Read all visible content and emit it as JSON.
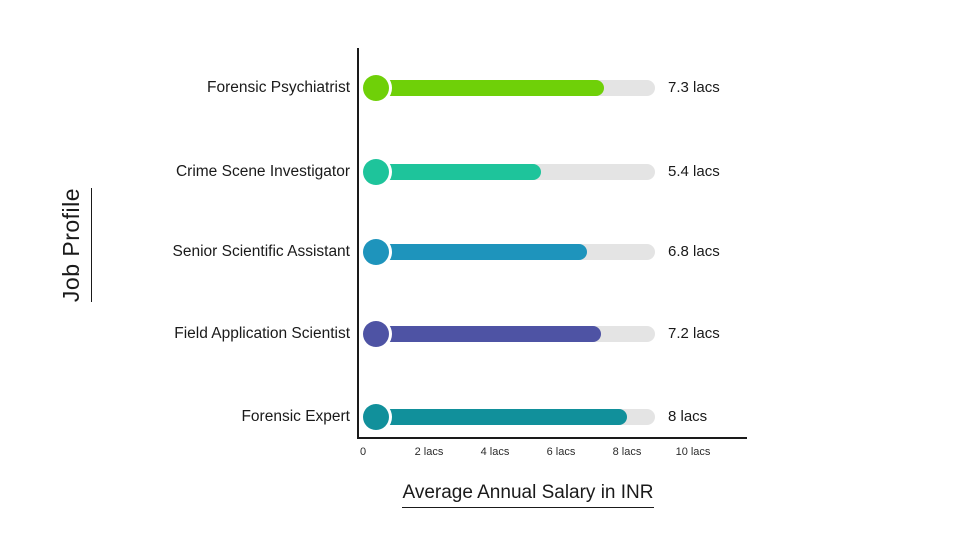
{
  "chart_data": {
    "type": "bar",
    "orientation": "horizontal",
    "title": "",
    "xlabel": "Average Annual Salary in INR",
    "ylabel": "Job Profile",
    "categories": [
      "Forensic Psychiatrist",
      "Crime Scene Investigator",
      "Senior Scientific Assistant",
      "Field Application Scientist",
      "Forensic Expert"
    ],
    "values": [
      7.3,
      5.4,
      6.8,
      7.2,
      8
    ],
    "value_labels": [
      "7.3 lacs",
      "5.4 lacs",
      "6.8 lacs",
      "7.2 lacs",
      "8 lacs"
    ],
    "bar_colors": [
      "#6FD008",
      "#1EC49B",
      "#1E94BC",
      "#4E53A4",
      "#11909B"
    ],
    "track_color": "#E4E4E4",
    "track_max": 8.85,
    "xticks": [
      "0",
      "2 lacs",
      "4 lacs",
      "6 lacs",
      "8 lacs",
      "10 lacs"
    ],
    "xlim": [
      0,
      10
    ],
    "grid": false,
    "legend": "none"
  }
}
